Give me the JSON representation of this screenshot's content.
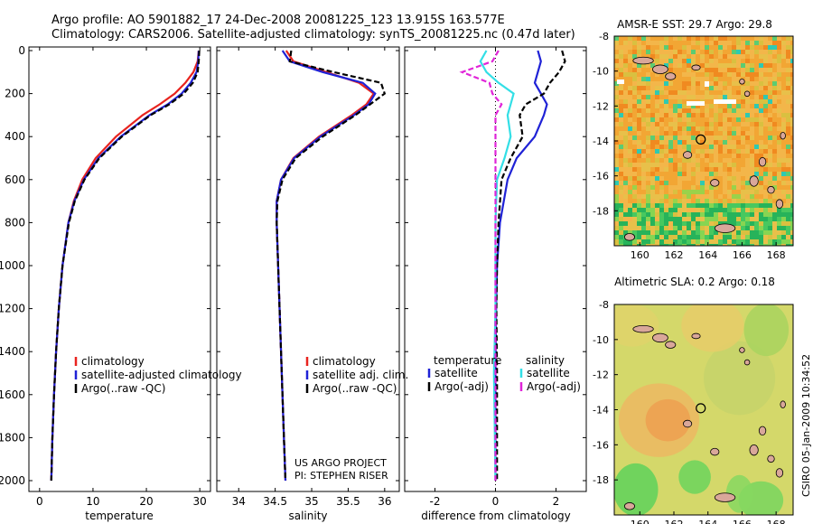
{
  "header": {
    "line1": "Argo profile: AO 5901882_17 24-Dec-2008 20081225_123 13.915S 163.577E",
    "line2": "Climatology: CARS2006. Satellite-adjusted climatology: synTS_20081225.nc (0.47d later)"
  },
  "side_label": "CSIRO 05-Jan-2009 10:34:52",
  "colors": {
    "climatology": "#e8231e",
    "satellite": "#1f22d6",
    "argo": "#000000",
    "sal_satellite": "#33dfe6",
    "sal_argo": "#e024d8",
    "land": "#d9a79a"
  },
  "chart_data": [
    {
      "type": "line",
      "panel": "temperature",
      "xlabel": "temperature",
      "ylabel": "",
      "xlim": [
        -2,
        32
      ],
      "ylim": [
        2000,
        0
      ],
      "y_inverted": true,
      "xticks": [
        0,
        10,
        20,
        30
      ],
      "yticks": [
        0,
        200,
        400,
        600,
        800,
        1000,
        1200,
        1400,
        1600,
        1800,
        2000
      ],
      "legend": {
        "position": "lower-center",
        "entries": [
          "climatology",
          "satellite-adjusted climatology",
          "Argo(..raw -QC)"
        ]
      },
      "series": [
        {
          "name": "climatology",
          "color_key": "climatology",
          "depth": [
            0,
            50,
            100,
            150,
            200,
            250,
            300,
            400,
            500,
            600,
            700,
            800,
            1000,
            1200,
            1400,
            1600,
            1800,
            2000
          ],
          "values": [
            29.8,
            29.6,
            28.8,
            27.3,
            25.3,
            22.5,
            19.3,
            14.3,
            10.5,
            8.0,
            6.4,
            5.4,
            4.3,
            3.6,
            3.1,
            2.7,
            2.4,
            2.2
          ]
        },
        {
          "name": "satellite-adjusted climatology",
          "color_key": "satellite",
          "depth": [
            0,
            50,
            100,
            150,
            200,
            250,
            300,
            400,
            500,
            600,
            700,
            800,
            1000,
            1200,
            1400,
            1600,
            1800,
            2000
          ],
          "values": [
            29.8,
            29.7,
            29.4,
            28.3,
            26.6,
            24.0,
            20.6,
            15.2,
            11.0,
            8.3,
            6.5,
            5.4,
            4.3,
            3.6,
            3.1,
            2.7,
            2.4,
            2.2
          ]
        },
        {
          "name": "Argo(..raw -QC)",
          "color_key": "argo",
          "depth": [
            0,
            50,
            100,
            150,
            200,
            250,
            300,
            400,
            500,
            600,
            700,
            800,
            1000,
            1200,
            1400,
            1600,
            1800,
            2000
          ],
          "values": [
            29.9,
            29.8,
            29.6,
            28.7,
            27.0,
            24.3,
            20.8,
            15.4,
            11.2,
            8.4,
            6.6,
            5.5,
            4.3,
            3.6,
            3.1,
            2.7,
            2.4,
            2.2
          ]
        }
      ]
    },
    {
      "type": "line",
      "panel": "salinity",
      "xlabel": "salinity",
      "xlim": [
        33.7,
        36.2
      ],
      "ylim": [
        2000,
        0
      ],
      "y_inverted": true,
      "xticks": [
        34,
        34.5,
        35,
        35.5,
        36
      ],
      "xticklabels": [
        "34",
        "34.5",
        "35",
        "35.5",
        "36"
      ],
      "legend": {
        "position": "lower-center",
        "entries": [
          "climatology",
          "satellite adj. clim.",
          "Argo(..raw -QC)"
        ]
      },
      "annotation": [
        "US ARGO PROJECT",
        "PI: STEPHEN RISER"
      ],
      "series": [
        {
          "name": "climatology",
          "color_key": "climatology",
          "depth": [
            0,
            50,
            100,
            150,
            200,
            250,
            300,
            400,
            500,
            600,
            700,
            800,
            1000,
            1200,
            1400,
            1600,
            1800,
            2000
          ],
          "values": [
            34.65,
            34.75,
            35.2,
            35.65,
            35.85,
            35.75,
            35.55,
            35.1,
            34.75,
            34.58,
            34.52,
            34.52,
            34.54,
            34.56,
            34.58,
            34.6,
            34.62,
            34.64
          ]
        },
        {
          "name": "satellite adj. clim.",
          "color_key": "satellite",
          "depth": [
            0,
            50,
            100,
            150,
            200,
            250,
            300,
            400,
            500,
            600,
            700,
            800,
            1000,
            1200,
            1400,
            1600,
            1800,
            2000
          ],
          "values": [
            34.6,
            34.7,
            35.15,
            35.7,
            35.87,
            35.78,
            35.58,
            35.12,
            34.76,
            34.58,
            34.52,
            34.52,
            34.54,
            34.56,
            34.58,
            34.6,
            34.62,
            34.64
          ]
        },
        {
          "name": "Argo(..raw -QC)",
          "color_key": "argo",
          "depth": [
            0,
            50,
            100,
            150,
            200,
            250,
            300,
            400,
            500,
            600,
            700,
            800,
            1000,
            1200,
            1400,
            1600,
            1800,
            2000
          ],
          "values": [
            34.72,
            34.7,
            35.3,
            35.95,
            36.0,
            35.8,
            35.6,
            35.15,
            34.78,
            34.6,
            34.53,
            34.52,
            34.54,
            34.56,
            34.58,
            34.6,
            34.62,
            34.64
          ]
        }
      ]
    },
    {
      "type": "line",
      "panel": "difference",
      "xlabel": "difference from climatology",
      "xlim": [
        -3,
        3
      ],
      "ylim": [
        2000,
        0
      ],
      "y_inverted": true,
      "xticks": [
        -2,
        0,
        2
      ],
      "legend": {
        "position": "lower-center",
        "headers": [
          "temperature",
          "salinity"
        ],
        "entries": [
          "satellite",
          "Argo(-adj)",
          "satellite",
          "Argo(-adj)"
        ]
      },
      "series": [
        {
          "name": "temperature satellite",
          "color_key": "satellite",
          "depth": [
            0,
            50,
            100,
            150,
            200,
            250,
            300,
            400,
            500,
            600,
            800,
            1000,
            1200,
            1500,
            2000
          ],
          "values": [
            1.4,
            1.5,
            1.4,
            1.3,
            1.5,
            1.7,
            1.6,
            1.3,
            0.7,
            0.4,
            0.15,
            0.05,
            0.02,
            0.0,
            0.0
          ]
        },
        {
          "name": "temperature Argo(-adj)",
          "color_key": "argo",
          "depth": [
            0,
            50,
            100,
            150,
            200,
            250,
            300,
            400,
            500,
            600,
            800,
            1000,
            1200,
            1500,
            2000
          ],
          "values": [
            2.2,
            2.3,
            2.1,
            1.8,
            1.6,
            1.0,
            0.8,
            0.9,
            0.5,
            0.2,
            0.1,
            0.05,
            0.03,
            0.05,
            0.05
          ]
        },
        {
          "name": "salinity satellite",
          "color_key": "sal_satellite",
          "depth": [
            0,
            50,
            100,
            150,
            200,
            250,
            300,
            400,
            500,
            600,
            800,
            1000,
            1200,
            1500,
            2000
          ],
          "values": [
            -0.3,
            -0.5,
            -0.3,
            0.1,
            0.6,
            0.5,
            0.4,
            0.5,
            0.3,
            0.05,
            0.0,
            0.0,
            0.0,
            -0.05,
            0.0
          ]
        },
        {
          "name": "salinity Argo(-adj)",
          "color_key": "sal_argo",
          "depth": [
            0,
            50,
            100,
            150,
            200,
            250,
            300,
            400,
            500,
            600,
            800,
            1000,
            1200,
            1500,
            2000
          ],
          "values": [
            0.1,
            -0.1,
            -1.1,
            -0.2,
            -0.1,
            0.2,
            0.0,
            0.0,
            0.0,
            0.0,
            0.0,
            0.0,
            0.0,
            0.0,
            0.0
          ]
        }
      ]
    },
    {
      "type": "heatmap",
      "panel": "sst-map",
      "title": "AMSR-E SST: 29.7 Argo: 29.8",
      "xlim": [
        158.5,
        169
      ],
      "ylim": [
        -20,
        -8
      ],
      "xticks": [
        160,
        162,
        164,
        166,
        168
      ],
      "yticks": [
        -8,
        -10,
        -12,
        -14,
        -16,
        -18
      ],
      "marker": {
        "lon": 163.577,
        "lat": -13.915
      }
    },
    {
      "type": "heatmap",
      "panel": "sla-map",
      "title": "Altimetric SLA: 0.2 Argo: 0.18",
      "xlim": [
        158.5,
        169
      ],
      "ylim": [
        -20,
        -8
      ],
      "xticks": [
        160,
        162,
        164,
        166,
        168
      ],
      "yticks": [
        -8,
        -10,
        -12,
        -14,
        -16,
        -18
      ],
      "marker": {
        "lon": 163.577,
        "lat": -13.915
      }
    }
  ]
}
